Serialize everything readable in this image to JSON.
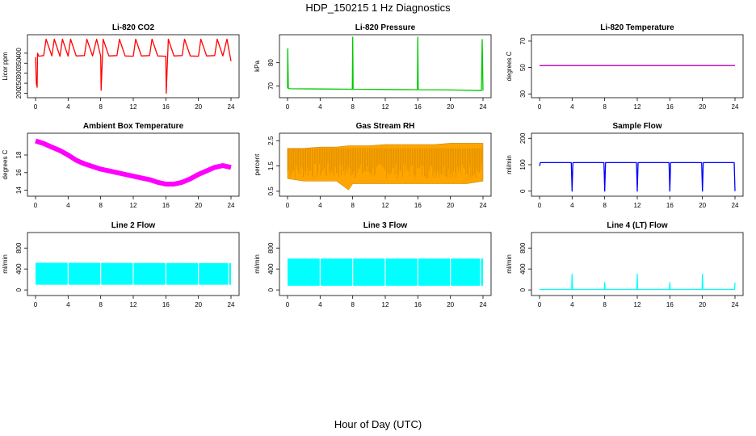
{
  "figure": {
    "title": "HDP_150215  1 Hz Diagnostics",
    "xlabel": "Hour of Day (UTC)"
  },
  "chart_data": [
    {
      "type": "line",
      "title": "Li-820 CO2",
      "ylabel": "Licor ppm",
      "color": "#ff0000",
      "xlim": [
        0,
        24
      ],
      "ylim": [
        190,
        480
      ],
      "x_ticks": [
        0,
        4,
        8,
        12,
        16,
        20,
        24
      ],
      "y_ticks": [
        200,
        250,
        300,
        350,
        400
      ],
      "x": [
        0,
        0.1,
        0.2,
        0.25,
        0.4,
        1,
        1.3,
        2,
        2.3,
        3,
        3.3,
        4,
        4.3,
        5,
        6,
        6.3,
        7,
        7.5,
        8,
        8.05,
        8.3,
        9,
        10,
        10.3,
        11,
        12,
        12.3,
        13,
        14,
        14.3,
        15,
        16,
        16.05,
        16.3,
        17,
        18,
        18.3,
        19,
        20,
        20.3,
        21,
        22,
        22.3,
        23,
        23.5,
        24
      ],
      "y": [
        380,
        250,
        230,
        400,
        385,
        388,
        470,
        386,
        470,
        384,
        470,
        385,
        470,
        386,
        388,
        470,
        386,
        470,
        385,
        215,
        470,
        386,
        388,
        470,
        386,
        385,
        470,
        386,
        388,
        470,
        386,
        385,
        200,
        470,
        386,
        388,
        470,
        386,
        385,
        470,
        386,
        388,
        470,
        386,
        470,
        360
      ]
    },
    {
      "type": "line",
      "title": "Li-820 Pressure",
      "ylabel": "kPa",
      "color": "#00c800",
      "xlim": [
        0,
        24
      ],
      "ylim": [
        66,
        91
      ],
      "x_ticks": [
        0,
        4,
        8,
        12,
        16,
        20,
        24
      ],
      "y_ticks": [
        70,
        80
      ],
      "x": [
        0,
        0.03,
        0.1,
        0.2,
        0.3,
        4,
        7.95,
        8,
        8.05,
        12,
        15.95,
        16,
        16.05,
        20,
        23.8,
        23.9,
        24
      ],
      "y": [
        69,
        86,
        69,
        69,
        68.8,
        68.7,
        68.6,
        91,
        68.6,
        68.5,
        68.4,
        91,
        68.4,
        68.3,
        68.0,
        90,
        68.0
      ]
    },
    {
      "type": "line",
      "title": "Li-820 Temperature",
      "ylabel": "degrees C",
      "color": "#b400b4",
      "xlim": [
        0,
        24
      ],
      "ylim": [
        29,
        73
      ],
      "x_ticks": [
        0,
        4,
        8,
        12,
        16,
        20,
        24
      ],
      "y_ticks": [
        30,
        50,
        70
      ],
      "x": [
        0,
        24
      ],
      "y": [
        51.5,
        51.5
      ]
    },
    {
      "type": "line",
      "title": "Ambient Box Temperature",
      "ylabel": "degrees C",
      "color": "#ff00ff",
      "xlim": [
        0,
        24
      ],
      "ylim": [
        13.6,
        20.2
      ],
      "x_ticks": [
        0,
        4,
        8,
        12,
        16,
        20,
        24
      ],
      "y_ticks": [
        14,
        16,
        18
      ],
      "x": [
        0,
        1,
        2,
        3,
        4,
        5,
        6,
        7,
        8,
        9,
        10,
        11,
        12,
        13,
        14,
        15,
        16,
        17,
        18,
        19,
        20,
        21,
        22,
        23,
        24
      ],
      "y": [
        19.6,
        19.3,
        18.9,
        18.5,
        18.0,
        17.4,
        17.0,
        16.7,
        16.4,
        16.2,
        16.0,
        15.8,
        15.6,
        15.4,
        15.2,
        14.9,
        14.7,
        14.7,
        14.9,
        15.3,
        15.8,
        16.2,
        16.6,
        16.8,
        16.6
      ]
    },
    {
      "type": "line",
      "title": "Gas Stream RH",
      "ylabel": "percent",
      "color": "#ffa500",
      "xlim": [
        0,
        24
      ],
      "ylim": [
        0.4,
        2.7
      ],
      "x_ticks": [
        0,
        4,
        8,
        12,
        16,
        20,
        24
      ],
      "y_ticks": [
        0.5,
        1.5,
        2.5
      ],
      "x": [
        0,
        2,
        4,
        6,
        7.5,
        8,
        10,
        12,
        14,
        16,
        18,
        20,
        22,
        24
      ],
      "y": [
        2.2,
        2.2,
        2.25,
        2.25,
        2.3,
        2.3,
        2.3,
        2.35,
        2.35,
        2.35,
        2.35,
        2.4,
        2.4,
        2.4
      ],
      "y_low": [
        1.0,
        0.9,
        0.9,
        0.9,
        0.55,
        0.8,
        0.8,
        0.8,
        0.8,
        0.8,
        0.8,
        0.8,
        0.8,
        0.9
      ]
    },
    {
      "type": "line",
      "title": "Sample Flow",
      "ylabel": "ml/min",
      "color": "#0000ff",
      "xlim": [
        0,
        24
      ],
      "ylim": [
        -10,
        210
      ],
      "x_ticks": [
        0,
        4,
        8,
        12,
        16,
        20,
        24
      ],
      "y_ticks": [
        0,
        100,
        200
      ],
      "x": [
        0,
        0.1,
        0.2,
        3.9,
        4,
        4.1,
        7.9,
        8,
        8.1,
        11.9,
        12,
        12.1,
        15.9,
        16,
        16.1,
        19.9,
        20,
        20.1,
        23.9,
        24
      ],
      "y": [
        95,
        108,
        108,
        108,
        0,
        108,
        108,
        0,
        108,
        108,
        0,
        108,
        108,
        0,
        108,
        108,
        0,
        108,
        108,
        0
      ]
    },
    {
      "type": "area",
      "title": "Line 2 Flow",
      "ylabel": "ml/min",
      "color": "#00ffff",
      "xlim": [
        0,
        24
      ],
      "ylim": [
        -60,
        1050
      ],
      "x_ticks": [
        0,
        4,
        8,
        12,
        16,
        20,
        24
      ],
      "y_ticks": [
        0,
        400,
        800
      ],
      "x": [
        0,
        24
      ],
      "y": [
        520,
        510
      ],
      "y_low": [
        100,
        100
      ],
      "gaps": [
        4,
        8,
        12,
        16,
        20,
        23.7
      ]
    },
    {
      "type": "area",
      "title": "Line 3 Flow",
      "ylabel": "ml/min",
      "color": "#00ffff",
      "xlim": [
        0,
        24
      ],
      "ylim": [
        -60,
        1050
      ],
      "x_ticks": [
        0,
        4,
        8,
        12,
        16,
        20,
        24
      ],
      "y_ticks": [
        0,
        400,
        800
      ],
      "x": [
        0,
        24
      ],
      "y": [
        600,
        600
      ],
      "y_low": [
        80,
        80
      ],
      "gaps": [
        4,
        8,
        12,
        16,
        20,
        23.7
      ]
    },
    {
      "type": "line",
      "title": "Line 4 (LT) Flow",
      "ylabel": "ml/min",
      "color": "#00ffff",
      "xlim": [
        0,
        24
      ],
      "ylim": [
        -60,
        1050
      ],
      "x_ticks": [
        0,
        4,
        8,
        12,
        16,
        20,
        24
      ],
      "y_ticks": [
        0,
        400,
        800
      ],
      "x": [
        0,
        3.95,
        4,
        4.05,
        7.95,
        8,
        8.05,
        11.95,
        12,
        12.05,
        15.95,
        16,
        16.05,
        19.95,
        20,
        20.05,
        23.95,
        24
      ],
      "y": [
        10,
        10,
        300,
        10,
        10,
        140,
        10,
        10,
        300,
        10,
        10,
        140,
        10,
        10,
        300,
        10,
        10,
        140
      ]
    }
  ]
}
